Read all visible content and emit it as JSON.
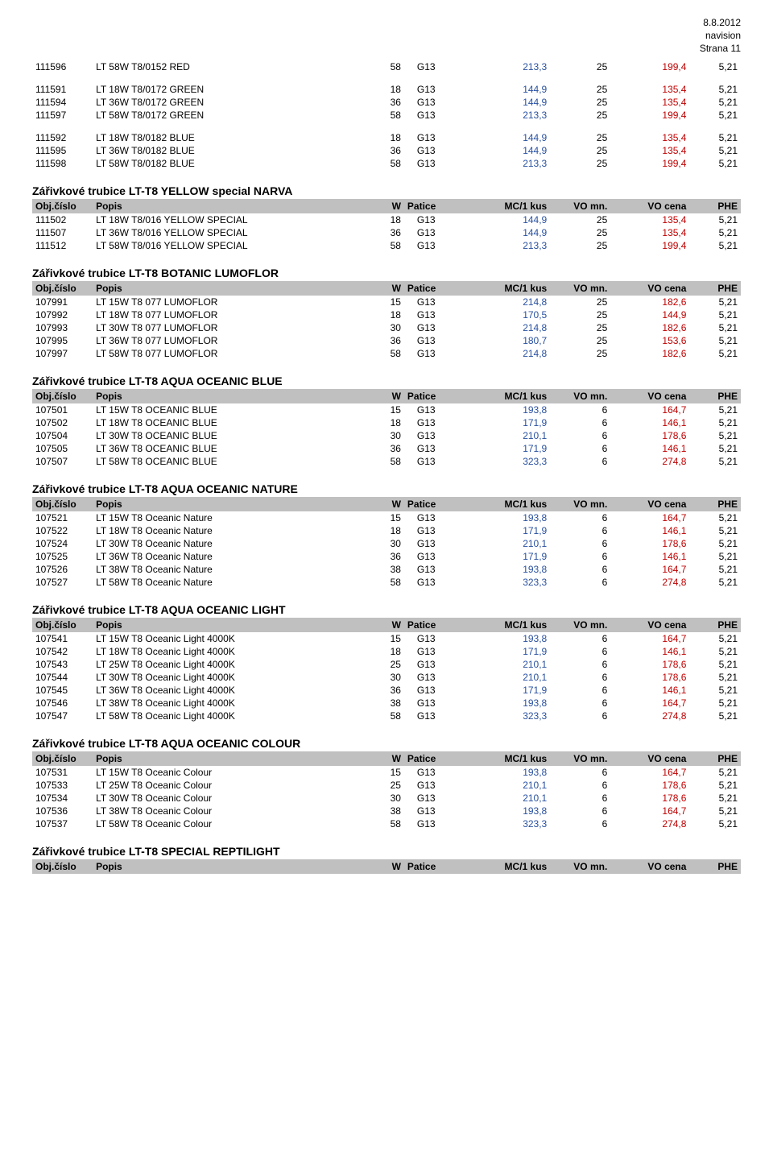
{
  "meta": {
    "date": "8.8.2012",
    "source": "navision",
    "page": "Strana 11"
  },
  "columns": {
    "obj": "Obj.číslo",
    "popis": "Popis",
    "w": "W",
    "patice": "Patice",
    "mc": "MC/1 kus",
    "vomn": "VO mn.",
    "vocena": "VO cena",
    "phe": "PHE"
  },
  "top_group1": [
    {
      "obj": "111596",
      "desc": "LT 58W T8/0152 RED",
      "w": "58",
      "pat": "G13",
      "mc": "213,3",
      "vo": "25",
      "cena": "199,4",
      "phe": "5,21"
    }
  ],
  "top_group2": [
    {
      "obj": "111591",
      "desc": "LT 18W T8/0172 GREEN",
      "w": "18",
      "pat": "G13",
      "mc": "144,9",
      "vo": "25",
      "cena": "135,4",
      "phe": "5,21"
    },
    {
      "obj": "111594",
      "desc": "LT 36W T8/0172 GREEN",
      "w": "36",
      "pat": "G13",
      "mc": "144,9",
      "vo": "25",
      "cena": "135,4",
      "phe": "5,21"
    },
    {
      "obj": "111597",
      "desc": "LT 58W T8/0172 GREEN",
      "w": "58",
      "pat": "G13",
      "mc": "213,3",
      "vo": "25",
      "cena": "199,4",
      "phe": "5,21"
    }
  ],
  "top_group3": [
    {
      "obj": "111592",
      "desc": "LT 18W T8/0182 BLUE",
      "w": "18",
      "pat": "G13",
      "mc": "144,9",
      "vo": "25",
      "cena": "135,4",
      "phe": "5,21"
    },
    {
      "obj": "111595",
      "desc": "LT 36W T8/0182 BLUE",
      "w": "36",
      "pat": "G13",
      "mc": "144,9",
      "vo": "25",
      "cena": "135,4",
      "phe": "5,21"
    },
    {
      "obj": "111598",
      "desc": "LT 58W T8/0182 BLUE",
      "w": "58",
      "pat": "G13",
      "mc": "213,3",
      "vo": "25",
      "cena": "199,4",
      "phe": "5,21"
    }
  ],
  "sections": [
    {
      "title": "Zářivkové trubice LT-T8 YELLOW special NARVA",
      "groups": [
        [
          {
            "obj": "111502",
            "desc": "LT 18W T8/016 YELLOW SPECIAL",
            "w": "18",
            "pat": "G13",
            "mc": "144,9",
            "vo": "25",
            "cena": "135,4",
            "phe": "5,21"
          },
          {
            "obj": "111507",
            "desc": "LT 36W T8/016 YELLOW SPECIAL",
            "w": "36",
            "pat": "G13",
            "mc": "144,9",
            "vo": "25",
            "cena": "135,4",
            "phe": "5,21"
          },
          {
            "obj": "111512",
            "desc": "LT 58W T8/016 YELLOW SPECIAL",
            "w": "58",
            "pat": "G13",
            "mc": "213,3",
            "vo": "25",
            "cena": "199,4",
            "phe": "5,21"
          }
        ]
      ]
    },
    {
      "title": "Zářivkové trubice LT-T8 BOTANIC LUMOFLOR",
      "groups": [
        [
          {
            "obj": "107991",
            "desc": "LT 15W T8 077 LUMOFLOR",
            "w": "15",
            "pat": "G13",
            "mc": "214,8",
            "vo": "25",
            "cena": "182,6",
            "phe": "5,21"
          },
          {
            "obj": "107992",
            "desc": "LT 18W T8 077 LUMOFLOR",
            "w": "18",
            "pat": "G13",
            "mc": "170,5",
            "vo": "25",
            "cena": "144,9",
            "phe": "5,21"
          },
          {
            "obj": "107993",
            "desc": "LT 30W T8 077 LUMOFLOR",
            "w": "30",
            "pat": "G13",
            "mc": "214,8",
            "vo": "25",
            "cena": "182,6",
            "phe": "5,21"
          },
          {
            "obj": "107995",
            "desc": "LT 36W T8 077 LUMOFLOR",
            "w": "36",
            "pat": "G13",
            "mc": "180,7",
            "vo": "25",
            "cena": "153,6",
            "phe": "5,21"
          },
          {
            "obj": "107997",
            "desc": "LT 58W T8 077 LUMOFLOR",
            "w": "58",
            "pat": "G13",
            "mc": "214,8",
            "vo": "25",
            "cena": "182,6",
            "phe": "5,21"
          }
        ]
      ]
    },
    {
      "title": "Zářivkové trubice LT-T8 AQUA OCEANIC BLUE",
      "groups": [
        [
          {
            "obj": "107501",
            "desc": "LT 15W T8 OCEANIC BLUE",
            "w": "15",
            "pat": "G13",
            "mc": "193,8",
            "vo": "6",
            "cena": "164,7",
            "phe": "5,21"
          },
          {
            "obj": "107502",
            "desc": "LT 18W T8 OCEANIC BLUE",
            "w": "18",
            "pat": "G13",
            "mc": "171,9",
            "vo": "6",
            "cena": "146,1",
            "phe": "5,21"
          },
          {
            "obj": "107504",
            "desc": "LT 30W T8 OCEANIC BLUE",
            "w": "30",
            "pat": "G13",
            "mc": "210,1",
            "vo": "6",
            "cena": "178,6",
            "phe": "5,21"
          },
          {
            "obj": "107505",
            "desc": "LT 36W T8 OCEANIC BLUE",
            "w": "36",
            "pat": "G13",
            "mc": "171,9",
            "vo": "6",
            "cena": "146,1",
            "phe": "5,21"
          },
          {
            "obj": "107507",
            "desc": "LT 58W T8 OCEANIC BLUE",
            "w": "58",
            "pat": "G13",
            "mc": "323,3",
            "vo": "6",
            "cena": "274,8",
            "phe": "5,21"
          }
        ]
      ]
    },
    {
      "title": "Zářivkové trubice LT-T8 AQUA OCEANIC NATURE",
      "groups": [
        [
          {
            "obj": "107521",
            "desc": "LT 15W T8 Oceanic Nature",
            "w": "15",
            "pat": "G13",
            "mc": "193,8",
            "vo": "6",
            "cena": "164,7",
            "phe": "5,21"
          },
          {
            "obj": "107522",
            "desc": "LT 18W T8 Oceanic Nature",
            "w": "18",
            "pat": "G13",
            "mc": "171,9",
            "vo": "6",
            "cena": "146,1",
            "phe": "5,21"
          },
          {
            "obj": "107524",
            "desc": "LT 30W T8 Oceanic Nature",
            "w": "30",
            "pat": "G13",
            "mc": "210,1",
            "vo": "6",
            "cena": "178,6",
            "phe": "5,21"
          },
          {
            "obj": "107525",
            "desc": "LT 36W T8 Oceanic Nature",
            "w": "36",
            "pat": "G13",
            "mc": "171,9",
            "vo": "6",
            "cena": "146,1",
            "phe": "5,21"
          },
          {
            "obj": "107526",
            "desc": "LT 38W T8 Oceanic Nature",
            "w": "38",
            "pat": "G13",
            "mc": "193,8",
            "vo": "6",
            "cena": "164,7",
            "phe": "5,21"
          },
          {
            "obj": "107527",
            "desc": "LT 58W T8 Oceanic Nature",
            "w": "58",
            "pat": "G13",
            "mc": "323,3",
            "vo": "6",
            "cena": "274,8",
            "phe": "5,21"
          }
        ]
      ]
    },
    {
      "title": "Zářivkové trubice LT-T8 AQUA OCEANIC LIGHT",
      "groups": [
        [
          {
            "obj": "107541",
            "desc": "LT 15W T8 Oceanic Light 4000K",
            "w": "15",
            "pat": "G13",
            "mc": "193,8",
            "vo": "6",
            "cena": "164,7",
            "phe": "5,21"
          },
          {
            "obj": "107542",
            "desc": "LT 18W T8 Oceanic Light 4000K",
            "w": "18",
            "pat": "G13",
            "mc": "171,9",
            "vo": "6",
            "cena": "146,1",
            "phe": "5,21"
          },
          {
            "obj": "107543",
            "desc": "LT 25W T8 Oceanic Light 4000K",
            "w": "25",
            "pat": "G13",
            "mc": "210,1",
            "vo": "6",
            "cena": "178,6",
            "phe": "5,21"
          },
          {
            "obj": "107544",
            "desc": "LT 30W T8 Oceanic Light 4000K",
            "w": "30",
            "pat": "G13",
            "mc": "210,1",
            "vo": "6",
            "cena": "178,6",
            "phe": "5,21"
          },
          {
            "obj": "107545",
            "desc": "LT 36W T8 Oceanic Light 4000K",
            "w": "36",
            "pat": "G13",
            "mc": "171,9",
            "vo": "6",
            "cena": "146,1",
            "phe": "5,21"
          },
          {
            "obj": "107546",
            "desc": "LT 38W T8 Oceanic Light 4000K",
            "w": "38",
            "pat": "G13",
            "mc": "193,8",
            "vo": "6",
            "cena": "164,7",
            "phe": "5,21"
          },
          {
            "obj": "107547",
            "desc": "LT 58W T8 Oceanic Light 4000K",
            "w": "58",
            "pat": "G13",
            "mc": "323,3",
            "vo": "6",
            "cena": "274,8",
            "phe": "5,21"
          }
        ]
      ]
    },
    {
      "title": "Zářivkové trubice LT-T8 AQUA OCEANIC COLOUR",
      "groups": [
        [
          {
            "obj": "107531",
            "desc": "LT 15W T8 Oceanic Colour",
            "w": "15",
            "pat": "G13",
            "mc": "193,8",
            "vo": "6",
            "cena": "164,7",
            "phe": "5,21"
          },
          {
            "obj": "107533",
            "desc": "LT 25W T8 Oceanic Colour",
            "w": "25",
            "pat": "G13",
            "mc": "210,1",
            "vo": "6",
            "cena": "178,6",
            "phe": "5,21"
          },
          {
            "obj": "107534",
            "desc": "LT 30W T8 Oceanic Colour",
            "w": "30",
            "pat": "G13",
            "mc": "210,1",
            "vo": "6",
            "cena": "178,6",
            "phe": "5,21"
          },
          {
            "obj": "107536",
            "desc": "LT 38W T8 Oceanic Colour",
            "w": "38",
            "pat": "G13",
            "mc": "193,8",
            "vo": "6",
            "cena": "164,7",
            "phe": "5,21"
          },
          {
            "obj": "107537",
            "desc": "LT 58W T8 Oceanic Colour",
            "w": "58",
            "pat": "G13",
            "mc": "323,3",
            "vo": "6",
            "cena": "274,8",
            "phe": "5,21"
          }
        ]
      ]
    },
    {
      "title": "Zářivkové trubice LT-T8 SPECIAL REPTILIGHT",
      "groups": []
    }
  ],
  "colors": {
    "blue": "#2850a0",
    "red": "#c00000",
    "header_bg": "#c0c0c0",
    "page_bg": "#ffffff"
  }
}
